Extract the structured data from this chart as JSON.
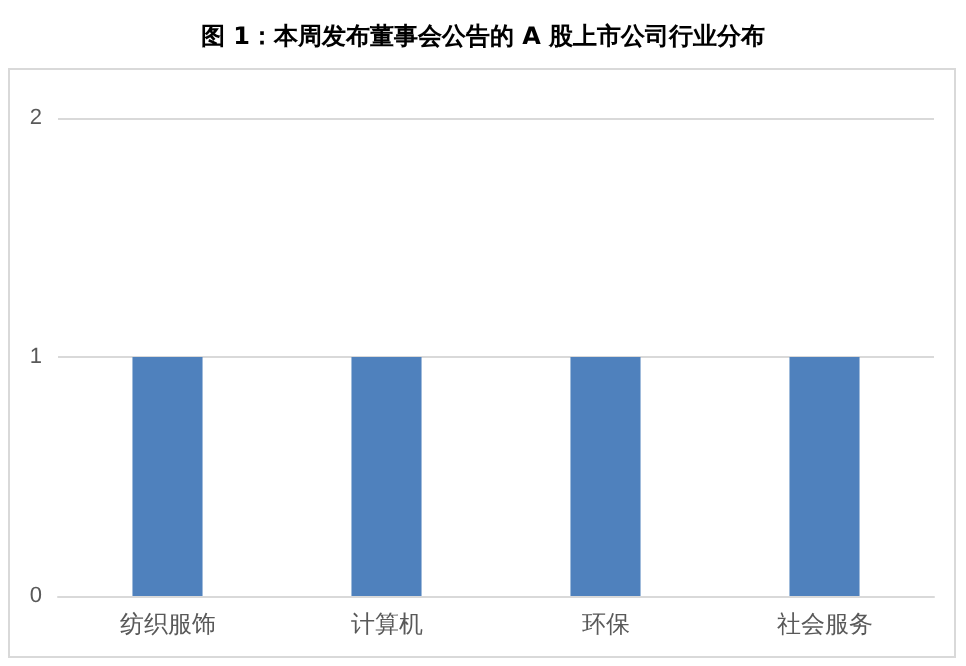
{
  "chart_data": {
    "type": "bar",
    "title": "图 1：本周发布董事会公告的 A 股上市公司行业分布",
    "categories": [
      "纺织服饰",
      "计算机",
      "环保",
      "社会服务"
    ],
    "values": [
      1,
      1,
      1,
      1
    ],
    "color": "#4f81bd",
    "ylim": [
      0,
      2
    ],
    "yticks": [
      0,
      1,
      2
    ],
    "grid": "y"
  }
}
